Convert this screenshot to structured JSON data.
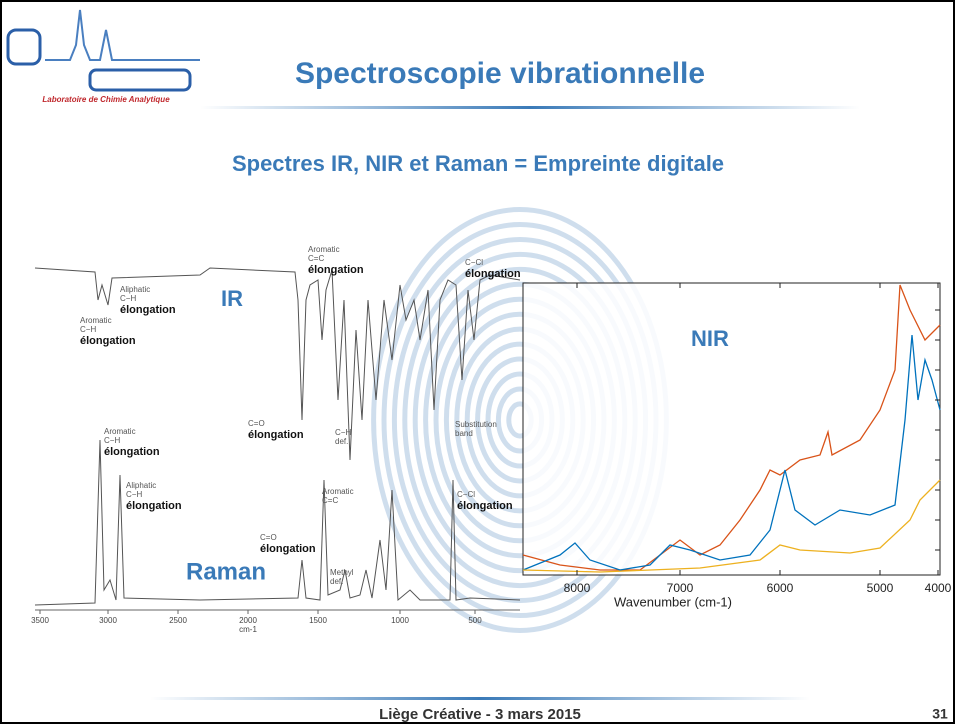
{
  "header": {
    "logo_caption": "Laboratoire de Chimie Analytique",
    "title": "Spectroscopie vibrationnelle"
  },
  "subtitle": "Spectres IR, NIR et Raman = Empreinte digitale",
  "labels": {
    "ir": "IR",
    "nir": "NIR",
    "raman": "Raman"
  },
  "annotations": [
    {
      "labels": [
        "Aromatic",
        "C−H"
      ],
      "emphasis": "élongation"
    },
    {
      "labels": [
        "Aliphatic",
        "C−H"
      ],
      "emphasis": "élongation"
    },
    {
      "labels": [
        "Aromatic",
        "C=C"
      ],
      "emphasis": "élongation"
    },
    {
      "labels": [
        "C−Cl"
      ],
      "emphasis": "élongation"
    },
    {
      "labels": [
        "C=O"
      ],
      "emphasis": "élongation"
    },
    {
      "labels": [
        "C−H",
        "def."
      ]
    },
    {
      "labels": [
        "Substitution",
        "band"
      ]
    },
    {
      "labels": [
        "Aromatic",
        "C−H"
      ],
      "emphasis": "élongation"
    },
    {
      "labels": [
        "Aliphatic",
        "C−H"
      ],
      "emphasis": "élongation"
    },
    {
      "labels": [
        "C=O"
      ],
      "emphasis": "élongation"
    },
    {
      "labels": [
        "Aromatic",
        "C=C"
      ]
    },
    {
      "labels": [
        "Methyl",
        "def."
      ]
    },
    {
      "labels": [
        "C−Cl"
      ],
      "emphasis": "élongation"
    }
  ],
  "ir_raman_axis": {
    "ticks": [
      "3500",
      "3000",
      "2500",
      "2000",
      "1500",
      "1000",
      "500"
    ],
    "unit": "cm-1"
  },
  "nir": {
    "ticks": [
      "8000",
      "7000",
      "6000",
      "5000",
      "4000"
    ],
    "axis_label": "Wavenumber (cm-1)"
  },
  "footer": {
    "text": "Liège Créative - 3 mars 2015",
    "page": "31"
  }
}
